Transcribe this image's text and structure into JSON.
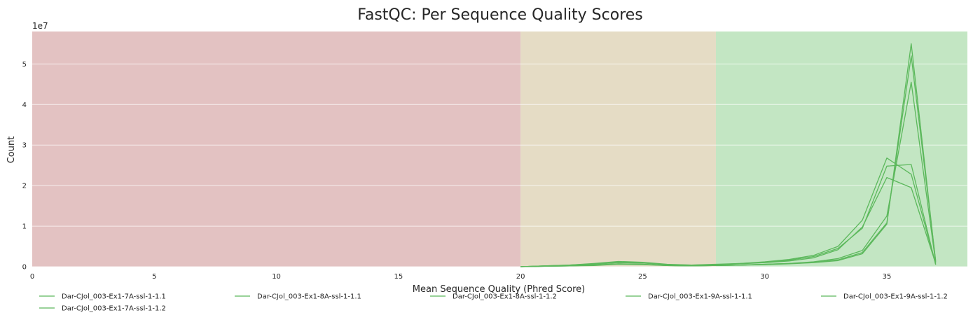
{
  "chart_data": {
    "type": "line",
    "title": "FastQC: Per Sequence Quality Scores",
    "xlabel": "Mean Sequence Quality (Phred Score)",
    "ylabel": "Count",
    "y_offset_label": "1e7",
    "xlim": [
      0,
      38.3
    ],
    "ylim": [
      0,
      5.8
    ],
    "y_unit_multiplier": 10000000,
    "xticks": [
      0,
      5,
      10,
      15,
      20,
      25,
      30,
      35
    ],
    "yticks": [
      0,
      1,
      2,
      3,
      4,
      5
    ],
    "grid": true,
    "legend_position": "bottom",
    "background_bands": [
      {
        "from": 0,
        "to": 20,
        "color": "#e3c2c2",
        "meaning": "poor"
      },
      {
        "from": 20,
        "to": 28,
        "color": "#e5dcc5",
        "meaning": "reasonable"
      },
      {
        "from": 28,
        "to": 38.3,
        "color": "#c3e6c3",
        "meaning": "good"
      }
    ],
    "line_color": "#5cb85c",
    "series": [
      {
        "name": "Dar-CJol_003-Ex1-7A-ssl-1-1.1",
        "x": [
          20,
          21,
          22,
          23,
          24,
          25,
          26,
          27,
          28,
          29,
          30,
          31,
          32,
          33,
          34,
          35,
          36,
          37
        ],
        "values": [
          0.0,
          0.02,
          0.04,
          0.07,
          0.12,
          0.1,
          0.05,
          0.04,
          0.05,
          0.08,
          0.11,
          0.16,
          0.25,
          0.45,
          0.95,
          2.48,
          2.52,
          0.05
        ]
      },
      {
        "name": "Dar-CJol_003-Ex1-7A-ssl-1-1.2",
        "x": [
          20,
          21,
          22,
          23,
          24,
          25,
          26,
          27,
          28,
          29,
          30,
          31,
          32,
          33,
          34,
          35,
          36,
          37
        ],
        "values": [
          0.0,
          0.02,
          0.04,
          0.08,
          0.13,
          0.11,
          0.06,
          0.04,
          0.06,
          0.08,
          0.12,
          0.18,
          0.28,
          0.5,
          1.15,
          2.68,
          2.28,
          0.06
        ]
      },
      {
        "name": "Dar-CJol_003-Ex1-8A-ssl-1-1.1",
        "x": [
          20,
          21,
          22,
          23,
          24,
          25,
          26,
          27,
          28,
          29,
          30,
          31,
          32,
          33,
          34,
          35,
          36,
          37
        ],
        "values": [
          0.0,
          0.01,
          0.02,
          0.04,
          0.07,
          0.06,
          0.03,
          0.02,
          0.03,
          0.04,
          0.06,
          0.08,
          0.12,
          0.2,
          0.4,
          1.25,
          4.55,
          0.1
        ]
      },
      {
        "name": "Dar-CJol_003-Ex1-8A-ssl-1-1.2",
        "x": [
          20,
          21,
          22,
          23,
          24,
          25,
          26,
          27,
          28,
          29,
          30,
          31,
          32,
          33,
          34,
          35,
          36,
          37
        ],
        "values": [
          0.0,
          0.01,
          0.02,
          0.04,
          0.07,
          0.06,
          0.03,
          0.02,
          0.03,
          0.04,
          0.06,
          0.08,
          0.11,
          0.17,
          0.35,
          1.08,
          5.2,
          0.15
        ]
      },
      {
        "name": "Dar-CJol_003-Ex1-9A-ssl-1-1.1",
        "x": [
          20,
          21,
          22,
          23,
          24,
          25,
          26,
          27,
          28,
          29,
          30,
          31,
          32,
          33,
          34,
          35,
          36,
          37
        ],
        "values": [
          0.0,
          0.01,
          0.02,
          0.03,
          0.06,
          0.05,
          0.03,
          0.02,
          0.03,
          0.04,
          0.05,
          0.07,
          0.1,
          0.15,
          0.32,
          1.05,
          5.5,
          0.12
        ]
      },
      {
        "name": "Dar-CJol_003-Ex1-9A-ssl-1-1.2",
        "x": [
          20,
          21,
          22,
          23,
          24,
          25,
          26,
          27,
          28,
          29,
          30,
          31,
          32,
          33,
          34,
          35,
          36,
          37
        ],
        "values": [
          0.0,
          0.02,
          0.03,
          0.06,
          0.1,
          0.09,
          0.05,
          0.03,
          0.05,
          0.07,
          0.1,
          0.14,
          0.22,
          0.42,
          0.98,
          2.2,
          1.95,
          0.08
        ]
      }
    ]
  },
  "legend": {
    "row1": [
      "Dar-CJol_003-Ex1-7A-ssl-1-1.1",
      "Dar-CJol_003-Ex1-8A-ssl-1-1.1",
      "Dar-CJol_003-Ex1-8A-ssl-1-1.2",
      "Dar-CJol_003-Ex1-9A-ssl-1-1.1",
      "Dar-CJol_003-Ex1-9A-ssl-1-1.2"
    ],
    "row2": [
      "Dar-CJol_003-Ex1-7A-ssl-1-1.2"
    ]
  }
}
